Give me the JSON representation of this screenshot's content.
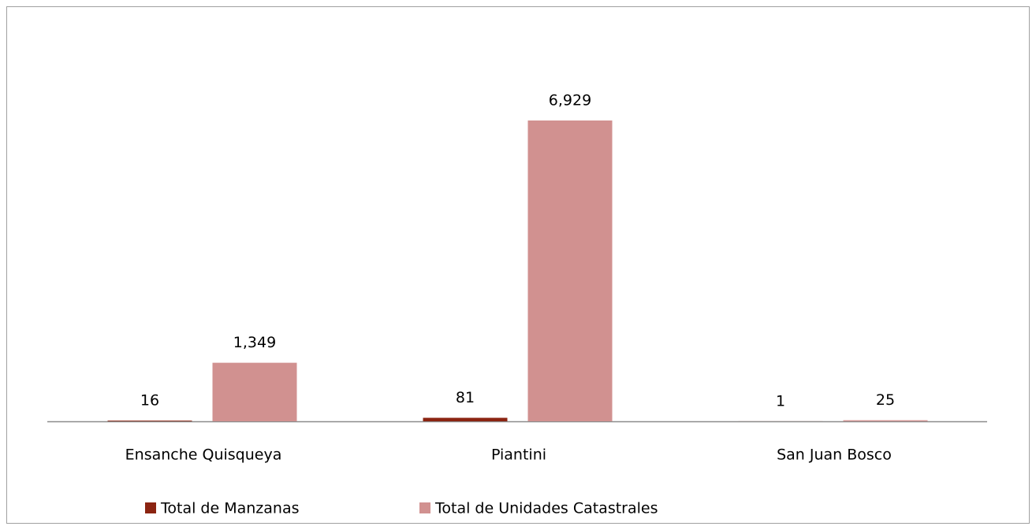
{
  "chart_data": {
    "type": "bar",
    "categories": [
      "Ensanche Quisqueya",
      "Piantini",
      "San Juan Bosco"
    ],
    "series": [
      {
        "name": "Total de Manzanas",
        "color": "#8b2411",
        "values": [
          16,
          81,
          1
        ]
      },
      {
        "name": "Total de Unidades Catastrales",
        "color": "#d19190",
        "values": [
          1349,
          6929,
          25
        ],
        "value_labels": [
          "1,349",
          "6,929",
          "25"
        ]
      }
    ],
    "legend": "bottom"
  }
}
